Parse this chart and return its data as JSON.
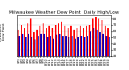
{
  "title": "Milwaukee Weather Dew Point  Daily High/Low",
  "ylabel_left": "Milwaukee\nDew Point",
  "x_labels": [
    "8/1",
    "8/2",
    "8/3",
    "8/4",
    "8/5",
    "8/6",
    "8/7",
    "8/8",
    "8/9",
    "8/10",
    "8/11",
    "8/12",
    "8/13",
    "8/14",
    "8/15",
    "8/16",
    "8/17",
    "8/18",
    "8/19",
    "8/20",
    "8/21",
    "8/22",
    "8/23",
    "8/24",
    "8/25",
    "8/26",
    "8/27",
    "8/28",
    "8/29",
    "8/30"
  ],
  "high": [
    62,
    70,
    65,
    72,
    80,
    58,
    62,
    68,
    72,
    65,
    68,
    65,
    70,
    72,
    75,
    68,
    65,
    68,
    62,
    65,
    68,
    65,
    68,
    70,
    80,
    82,
    80,
    78,
    68,
    65
  ],
  "low": [
    52,
    55,
    50,
    55,
    50,
    46,
    52,
    55,
    56,
    50,
    52,
    48,
    54,
    55,
    52,
    52,
    50,
    52,
    48,
    50,
    52,
    50,
    52,
    60,
    65,
    62,
    58,
    55,
    52,
    50
  ],
  "high_color": "#FF0000",
  "low_color": "#0000CC",
  "ylim": [
    20,
    85
  ],
  "yticks": [
    20,
    30,
    40,
    50,
    60,
    70,
    80
  ],
  "ytick_labels": [
    "20",
    "30",
    "40",
    "50",
    "60",
    "70",
    "80"
  ],
  "background_color": "#FFFFFF",
  "grid_color": "#CCCCCC",
  "title_fontsize": 4.2,
  "tick_fontsize": 3.0,
  "ylabel_fontsize": 3.2,
  "bar_width": 0.38
}
